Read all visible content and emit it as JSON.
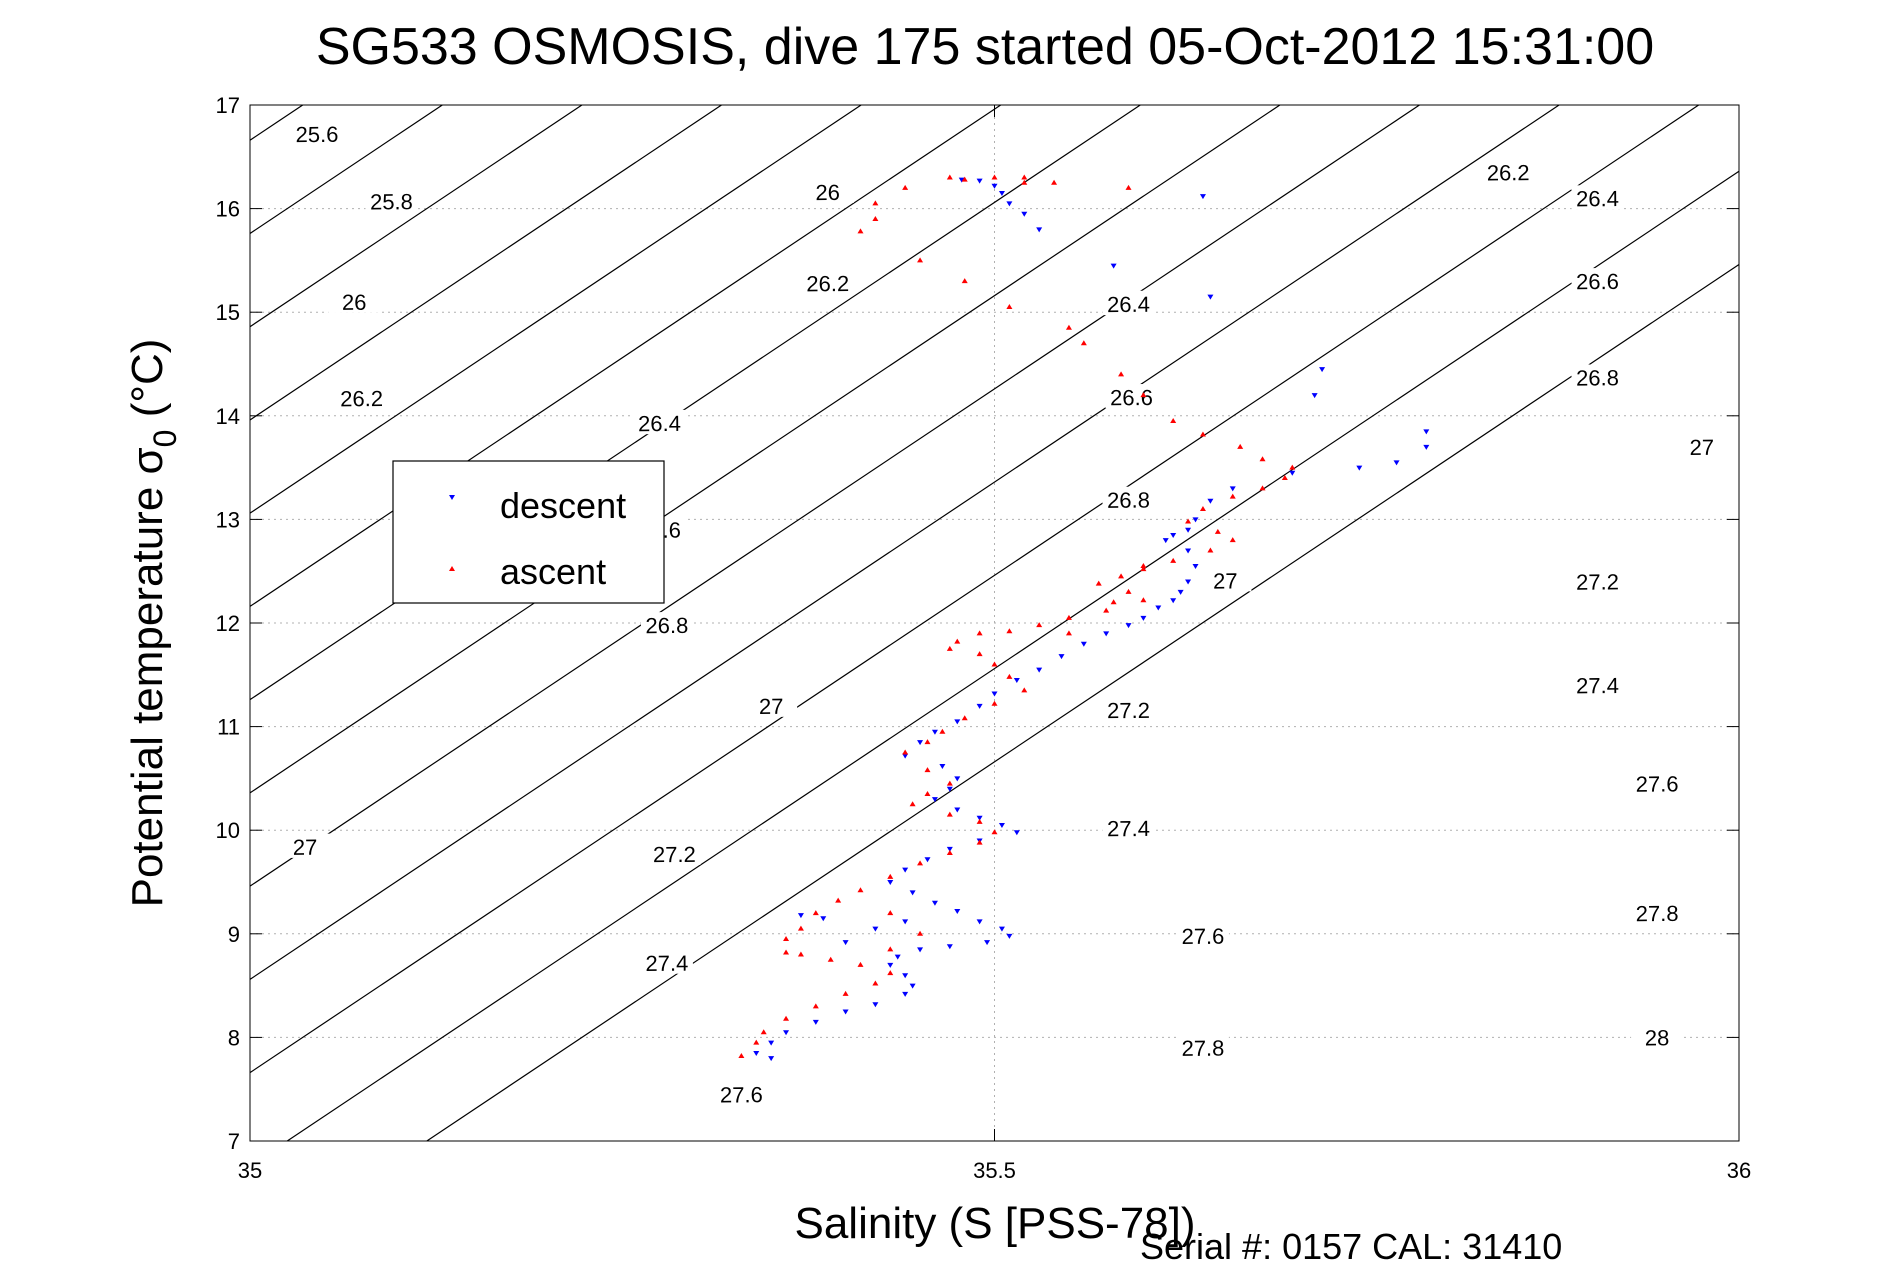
{
  "chart_data": {
    "type": "scatter",
    "title": "SG533 OSMOSIS, dive 175 started 05-Oct-2012 15:31:00",
    "xlabel": "Salinity (S [PSS-78])",
    "ylabel": "Potential temperature σ",
    "ylabel_sub": "0",
    "ylabel_unit": " (°C)",
    "xlim": [
      35,
      36
    ],
    "ylim": [
      7,
      17
    ],
    "x_ticks": [
      35,
      35.5,
      36
    ],
    "x_tick_labels": [
      "35",
      "35.5",
      "36"
    ],
    "y_ticks": [
      7,
      8,
      9,
      10,
      11,
      12,
      13,
      14,
      15,
      16,
      17
    ],
    "y_tick_labels": [
      "7",
      "8",
      "9",
      "10",
      "11",
      "12",
      "13",
      "14",
      "15",
      "16",
      "17"
    ],
    "grid": true,
    "legend_position": "left",
    "footer": "Serial #: 0157  CAL: 31410",
    "contours": [
      {
        "level": 25.6,
        "t_at_35": 16.66,
        "slope": 9.6
      },
      {
        "level": 25.8,
        "t_at_35": 15.76,
        "slope": 9.6
      },
      {
        "level": 26.0,
        "t_at_35": 14.86,
        "slope": 9.6
      },
      {
        "level": 26.2,
        "t_at_35": 13.96,
        "slope": 9.6
      },
      {
        "level": 26.4,
        "t_at_35": 13.06,
        "slope": 9.6
      },
      {
        "level": 26.6,
        "t_at_35": 12.16,
        "slope": 9.6
      },
      {
        "level": 26.8,
        "t_at_35": 11.26,
        "slope": 9.6
      },
      {
        "level": 27.0,
        "t_at_35": 10.36,
        "slope": 9.6
      },
      {
        "level": 27.2,
        "t_at_35": 9.46,
        "slope": 9.6
      },
      {
        "level": 27.4,
        "t_at_35": 8.56,
        "slope": 9.6
      },
      {
        "level": 27.6,
        "t_at_35": 7.66,
        "slope": 9.6
      },
      {
        "level": 27.8,
        "t_at_35": 6.76,
        "slope": 9.6
      },
      {
        "level": 28.0,
        "t_at_35": 5.86,
        "slope": 9.6
      }
    ],
    "contour_labels": [
      {
        "text": "25.6",
        "x": 35.045,
        "y": 16.72
      },
      {
        "text": "25.8",
        "x": 35.095,
        "y": 16.07
      },
      {
        "text": "26",
        "x": 35.07,
        "y": 15.1
      },
      {
        "text": "26.2",
        "x": 35.075,
        "y": 14.17
      },
      {
        "text": "26.4",
        "x": 35.275,
        "y": 13.93
      },
      {
        "text": "26.6",
        "x": 35.275,
        "y": 12.9
      },
      {
        "text": "26.8",
        "x": 35.28,
        "y": 11.98
      },
      {
        "text": "27",
        "x": 35.35,
        "y": 11.2
      },
      {
        "text": "27.2",
        "x": 35.285,
        "y": 9.77
      },
      {
        "text": "27.4",
        "x": 35.28,
        "y": 8.72
      },
      {
        "text": "27.6",
        "x": 35.33,
        "y": 7.45
      },
      {
        "text": "27",
        "x": 35.037,
        "y": 9.84
      },
      {
        "text": "26",
        "x": 35.388,
        "y": 16.16
      },
      {
        "text": "26.2",
        "x": 35.388,
        "y": 15.28
      },
      {
        "text": "26.4",
        "x": 35.59,
        "y": 15.08
      },
      {
        "text": "26.6",
        "x": 35.592,
        "y": 14.18
      },
      {
        "text": "26.8",
        "x": 35.59,
        "y": 13.19
      },
      {
        "text": "27",
        "x": 35.655,
        "y": 12.41
      },
      {
        "text": "27.2",
        "x": 35.59,
        "y": 11.16
      },
      {
        "text": "27.4",
        "x": 35.59,
        "y": 10.02
      },
      {
        "text": "27.6",
        "x": 35.64,
        "y": 8.98
      },
      {
        "text": "27.8",
        "x": 35.64,
        "y": 7.9
      },
      {
        "text": "26.2",
        "x": 35.845,
        "y": 16.35
      },
      {
        "text": "26.4",
        "x": 35.905,
        "y": 16.1
      },
      {
        "text": "26.6",
        "x": 35.905,
        "y": 15.3
      },
      {
        "text": "26.8",
        "x": 35.905,
        "y": 14.37
      },
      {
        "text": "27",
        "x": 35.975,
        "y": 13.7
      },
      {
        "text": "27.2",
        "x": 35.905,
        "y": 12.4
      },
      {
        "text": "27.4",
        "x": 35.905,
        "y": 11.4
      },
      {
        "text": "27.6",
        "x": 35.945,
        "y": 10.45
      },
      {
        "text": "27.8",
        "x": 35.945,
        "y": 9.2
      },
      {
        "text": "28",
        "x": 35.945,
        "y": 8.0
      }
    ],
    "series": [
      {
        "name": "descent",
        "color": "#0000ff",
        "marker": "triangle-down",
        "points": [
          [
            35.478,
            16.28
          ],
          [
            35.49,
            16.27
          ],
          [
            35.5,
            16.22
          ],
          [
            35.505,
            16.15
          ],
          [
            35.51,
            16.05
          ],
          [
            35.52,
            15.95
          ],
          [
            35.53,
            15.8
          ],
          [
            35.58,
            15.45
          ],
          [
            35.645,
            15.15
          ],
          [
            35.64,
            16.12
          ],
          [
            35.72,
            14.45
          ],
          [
            35.715,
            14.2
          ],
          [
            35.79,
            13.85
          ],
          [
            35.79,
            13.7
          ],
          [
            35.77,
            13.55
          ],
          [
            35.745,
            13.5
          ],
          [
            35.7,
            13.45
          ],
          [
            35.66,
            13.3
          ],
          [
            35.645,
            13.18
          ],
          [
            35.635,
            13.0
          ],
          [
            35.63,
            12.9
          ],
          [
            35.62,
            12.85
          ],
          [
            35.615,
            12.8
          ],
          [
            35.63,
            12.7
          ],
          [
            35.635,
            12.55
          ],
          [
            35.63,
            12.4
          ],
          [
            35.625,
            12.3
          ],
          [
            35.62,
            12.22
          ],
          [
            35.61,
            12.15
          ],
          [
            35.6,
            12.05
          ],
          [
            35.59,
            11.98
          ],
          [
            35.575,
            11.9
          ],
          [
            35.56,
            11.8
          ],
          [
            35.545,
            11.68
          ],
          [
            35.53,
            11.55
          ],
          [
            35.515,
            11.45
          ],
          [
            35.5,
            11.32
          ],
          [
            35.49,
            11.2
          ],
          [
            35.475,
            11.05
          ],
          [
            35.46,
            10.95
          ],
          [
            35.45,
            10.85
          ],
          [
            35.44,
            10.72
          ],
          [
            35.465,
            10.62
          ],
          [
            35.475,
            10.5
          ],
          [
            35.47,
            10.4
          ],
          [
            35.46,
            10.3
          ],
          [
            35.475,
            10.2
          ],
          [
            35.49,
            10.12
          ],
          [
            35.505,
            10.05
          ],
          [
            35.515,
            9.98
          ],
          [
            35.49,
            9.9
          ],
          [
            35.47,
            9.82
          ],
          [
            35.455,
            9.72
          ],
          [
            35.44,
            9.62
          ],
          [
            35.43,
            9.5
          ],
          [
            35.445,
            9.4
          ],
          [
            35.46,
            9.3
          ],
          [
            35.475,
            9.22
          ],
          [
            35.49,
            9.12
          ],
          [
            35.505,
            9.05
          ],
          [
            35.51,
            8.98
          ],
          [
            35.495,
            8.92
          ],
          [
            35.47,
            8.88
          ],
          [
            35.45,
            8.85
          ],
          [
            35.435,
            8.78
          ],
          [
            35.43,
            8.7
          ],
          [
            35.44,
            8.6
          ],
          [
            35.445,
            8.5
          ],
          [
            35.44,
            8.42
          ],
          [
            35.42,
            8.32
          ],
          [
            35.4,
            8.25
          ],
          [
            35.38,
            8.15
          ],
          [
            35.36,
            8.05
          ],
          [
            35.35,
            7.95
          ],
          [
            35.34,
            7.85
          ],
          [
            35.35,
            7.8
          ],
          [
            35.37,
            9.18
          ],
          [
            35.385,
            9.15
          ],
          [
            35.4,
            8.92
          ],
          [
            35.42,
            9.05
          ],
          [
            35.44,
            9.12
          ]
        ]
      },
      {
        "name": "ascent",
        "color": "#ff0000",
        "marker": "triangle-up",
        "points": [
          [
            35.47,
            16.3
          ],
          [
            35.48,
            16.28
          ],
          [
            35.5,
            16.3
          ],
          [
            35.52,
            16.3
          ],
          [
            35.44,
            16.2
          ],
          [
            35.42,
            16.05
          ],
          [
            35.42,
            15.9
          ],
          [
            35.41,
            15.78
          ],
          [
            35.45,
            15.5
          ],
          [
            35.48,
            15.3
          ],
          [
            35.51,
            15.05
          ],
          [
            35.55,
            14.85
          ],
          [
            35.56,
            14.7
          ],
          [
            35.585,
            14.4
          ],
          [
            35.6,
            14.2
          ],
          [
            35.62,
            13.95
          ],
          [
            35.64,
            13.82
          ],
          [
            35.665,
            13.7
          ],
          [
            35.68,
            13.58
          ],
          [
            35.7,
            13.5
          ],
          [
            35.695,
            13.4
          ],
          [
            35.68,
            13.3
          ],
          [
            35.66,
            13.22
          ],
          [
            35.64,
            13.1
          ],
          [
            35.63,
            12.98
          ],
          [
            35.65,
            12.88
          ],
          [
            35.66,
            12.8
          ],
          [
            35.645,
            12.7
          ],
          [
            35.62,
            12.6
          ],
          [
            35.6,
            12.52
          ],
          [
            35.585,
            12.45
          ],
          [
            35.57,
            12.38
          ],
          [
            35.59,
            12.3
          ],
          [
            35.6,
            12.22
          ],
          [
            35.575,
            12.12
          ],
          [
            35.55,
            12.05
          ],
          [
            35.53,
            11.98
          ],
          [
            35.51,
            11.92
          ],
          [
            35.49,
            11.9
          ],
          [
            35.475,
            11.82
          ],
          [
            35.47,
            11.75
          ],
          [
            35.49,
            11.7
          ],
          [
            35.5,
            11.6
          ],
          [
            35.51,
            11.48
          ],
          [
            35.52,
            11.35
          ],
          [
            35.5,
            11.22
          ],
          [
            35.48,
            11.08
          ],
          [
            35.465,
            10.95
          ],
          [
            35.455,
            10.85
          ],
          [
            35.44,
            10.75
          ],
          [
            35.455,
            10.58
          ],
          [
            35.47,
            10.45
          ],
          [
            35.455,
            10.35
          ],
          [
            35.445,
            10.25
          ],
          [
            35.47,
            10.15
          ],
          [
            35.49,
            10.08
          ],
          [
            35.5,
            9.98
          ],
          [
            35.49,
            9.88
          ],
          [
            35.47,
            9.78
          ],
          [
            35.45,
            9.68
          ],
          [
            35.43,
            9.55
          ],
          [
            35.41,
            9.42
          ],
          [
            35.395,
            9.32
          ],
          [
            35.38,
            9.2
          ],
          [
            35.37,
            9.05
          ],
          [
            35.36,
            8.95
          ],
          [
            35.36,
            8.82
          ],
          [
            35.37,
            8.8
          ],
          [
            35.39,
            8.75
          ],
          [
            35.41,
            8.7
          ],
          [
            35.43,
            8.62
          ],
          [
            35.42,
            8.52
          ],
          [
            35.4,
            8.42
          ],
          [
            35.38,
            8.3
          ],
          [
            35.36,
            8.18
          ],
          [
            35.345,
            8.05
          ],
          [
            35.34,
            7.95
          ],
          [
            35.33,
            7.82
          ],
          [
            35.43,
            9.2
          ],
          [
            35.45,
            9.0
          ],
          [
            35.43,
            8.85
          ],
          [
            35.55,
            11.9
          ],
          [
            35.58,
            12.2
          ],
          [
            35.6,
            12.55
          ],
          [
            35.59,
            16.2
          ],
          [
            35.52,
            16.25
          ],
          [
            35.54,
            16.25
          ]
        ]
      }
    ]
  }
}
